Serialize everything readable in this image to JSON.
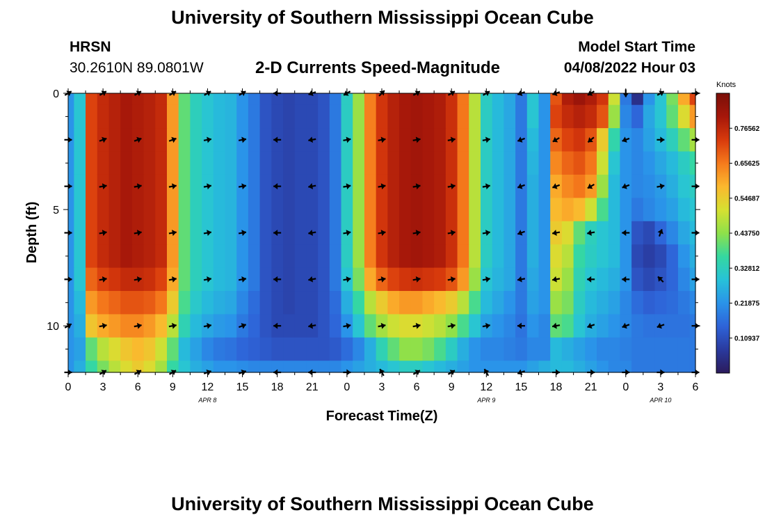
{
  "page": {
    "title": "University of Southern Mississippi Ocean Cube",
    "bottom_title": "University of Southern Mississippi Ocean Cube",
    "station": "HRSN",
    "location": "30.2610N  89.0801W",
    "center_title": "2-D Currents Speed-Magnitude",
    "model_start_label": "Model Start Time",
    "model_start_value": "04/08/2022 Hour 03"
  },
  "colors": {
    "background": "#ffffff",
    "axis": "#000000",
    "arrow": "#000000",
    "colormap": [
      "#2b1b5c",
      "#2a3a9e",
      "#2e63d8",
      "#2a93e9",
      "#27c2d8",
      "#35d8a0",
      "#8ee04a",
      "#d6e031",
      "#fbb82e",
      "#f57a1c",
      "#d83a0c",
      "#a6170a",
      "#7a0f08"
    ]
  },
  "chart_data": {
    "type": "heatmap",
    "title": "2-D Currents Speed-Magnitude",
    "xlabel": "Forecast Time(Z)",
    "ylabel": "Depth (ft)",
    "x_ticks": [
      "0",
      "3",
      "6",
      "9",
      "12",
      "15",
      "18",
      "21",
      "0",
      "3",
      "6",
      "9",
      "12",
      "15",
      "18",
      "21",
      "0",
      "3",
      "6"
    ],
    "x_hours": [
      0,
      3,
      6,
      9,
      12,
      15,
      18,
      21,
      24,
      27,
      30,
      33,
      36,
      39,
      42,
      45,
      48,
      51,
      54
    ],
    "x_range_hours": [
      0,
      54
    ],
    "date_labels": [
      {
        "text": "APR 8",
        "hour": 12
      },
      {
        "text": "APR 9",
        "hour": 36
      },
      {
        "text": "APR 10",
        "hour": 51
      }
    ],
    "y_ticks": [
      "0",
      "5",
      "10"
    ],
    "y_tick_values": [
      0,
      5,
      10
    ],
    "y_range_ft": [
      0,
      12
    ],
    "colorbar": {
      "label": "Knots",
      "tick_labels": [
        "0.76562",
        "0.65625",
        "0.54687",
        "0.43750",
        "0.32812",
        "0.21875",
        "0.10937"
      ],
      "tick_values": [
        0.765625,
        0.65625,
        0.546875,
        0.4375,
        0.328125,
        0.21875,
        0.109375
      ],
      "range": [
        0.0,
        0.875
      ]
    },
    "depths_ft": [
      0,
      1,
      2,
      3,
      4,
      5,
      6,
      7,
      8,
      9,
      10,
      11,
      12
    ],
    "time_hours": [
      0,
      1,
      2,
      3,
      4,
      5,
      6,
      7,
      8,
      9,
      10,
      11,
      12,
      13,
      14,
      15,
      16,
      17,
      18,
      19,
      20,
      21,
      22,
      23,
      24,
      25,
      26,
      27,
      28,
      29,
      30,
      31,
      32,
      33,
      34,
      35,
      36,
      37,
      38,
      39,
      40,
      41,
      42,
      43,
      44,
      45,
      46,
      47,
      48,
      49,
      50,
      51,
      52,
      53,
      54
    ],
    "speed_profile_knots": [
      [
        0.22,
        0.3,
        0.72,
        0.76,
        0.78,
        0.8,
        0.79,
        0.78,
        0.76,
        0.62,
        0.4,
        0.33,
        0.3,
        0.28,
        0.27,
        0.22,
        0.18,
        0.12,
        0.1,
        0.09,
        0.1,
        0.1,
        0.12,
        0.18,
        0.32,
        0.45,
        0.65,
        0.74,
        0.78,
        0.8,
        0.81,
        0.8,
        0.79,
        0.75,
        0.66,
        0.48,
        0.32,
        0.28,
        0.25,
        0.18,
        0.3,
        0.22,
        0.7,
        0.79,
        0.82,
        0.79,
        0.74,
        0.5,
        0.18,
        0.05,
        0.22,
        0.3,
        0.42,
        0.6,
        0.72
      ],
      [
        0.22,
        0.3,
        0.72,
        0.76,
        0.78,
        0.8,
        0.79,
        0.78,
        0.76,
        0.62,
        0.4,
        0.33,
        0.3,
        0.28,
        0.27,
        0.22,
        0.18,
        0.12,
        0.1,
        0.09,
        0.1,
        0.1,
        0.12,
        0.18,
        0.32,
        0.45,
        0.65,
        0.74,
        0.78,
        0.8,
        0.81,
        0.8,
        0.79,
        0.75,
        0.66,
        0.48,
        0.32,
        0.28,
        0.25,
        0.18,
        0.3,
        0.22,
        0.72,
        0.76,
        0.78,
        0.76,
        0.7,
        0.45,
        0.2,
        0.15,
        0.25,
        0.3,
        0.4,
        0.52,
        0.62
      ],
      [
        0.22,
        0.3,
        0.72,
        0.76,
        0.78,
        0.8,
        0.79,
        0.78,
        0.76,
        0.62,
        0.4,
        0.33,
        0.3,
        0.28,
        0.27,
        0.22,
        0.18,
        0.12,
        0.1,
        0.09,
        0.1,
        0.1,
        0.12,
        0.18,
        0.32,
        0.45,
        0.65,
        0.74,
        0.78,
        0.8,
        0.81,
        0.8,
        0.79,
        0.75,
        0.66,
        0.48,
        0.32,
        0.28,
        0.25,
        0.18,
        0.28,
        0.22,
        0.68,
        0.72,
        0.74,
        0.7,
        0.55,
        0.35,
        0.22,
        0.2,
        0.24,
        0.28,
        0.33,
        0.4,
        0.46
      ],
      [
        0.22,
        0.3,
        0.72,
        0.76,
        0.78,
        0.8,
        0.79,
        0.78,
        0.76,
        0.62,
        0.4,
        0.33,
        0.3,
        0.28,
        0.27,
        0.22,
        0.18,
        0.12,
        0.1,
        0.09,
        0.1,
        0.1,
        0.12,
        0.18,
        0.32,
        0.45,
        0.65,
        0.74,
        0.78,
        0.8,
        0.81,
        0.8,
        0.79,
        0.75,
        0.66,
        0.48,
        0.32,
        0.28,
        0.25,
        0.18,
        0.27,
        0.22,
        0.64,
        0.68,
        0.7,
        0.66,
        0.5,
        0.3,
        0.22,
        0.2,
        0.22,
        0.25,
        0.28,
        0.32,
        0.36
      ],
      [
        0.22,
        0.3,
        0.72,
        0.76,
        0.78,
        0.8,
        0.79,
        0.78,
        0.76,
        0.62,
        0.4,
        0.33,
        0.3,
        0.28,
        0.27,
        0.22,
        0.18,
        0.12,
        0.1,
        0.09,
        0.1,
        0.1,
        0.12,
        0.18,
        0.32,
        0.45,
        0.65,
        0.74,
        0.78,
        0.8,
        0.81,
        0.8,
        0.79,
        0.75,
        0.66,
        0.48,
        0.32,
        0.28,
        0.25,
        0.18,
        0.26,
        0.22,
        0.6,
        0.64,
        0.66,
        0.62,
        0.45,
        0.28,
        0.22,
        0.2,
        0.21,
        0.23,
        0.26,
        0.3,
        0.32
      ],
      [
        0.22,
        0.3,
        0.72,
        0.76,
        0.78,
        0.8,
        0.79,
        0.78,
        0.76,
        0.62,
        0.4,
        0.33,
        0.3,
        0.28,
        0.27,
        0.22,
        0.18,
        0.12,
        0.1,
        0.09,
        0.1,
        0.1,
        0.12,
        0.18,
        0.32,
        0.45,
        0.65,
        0.74,
        0.78,
        0.8,
        0.81,
        0.8,
        0.79,
        0.75,
        0.66,
        0.48,
        0.32,
        0.28,
        0.25,
        0.18,
        0.26,
        0.22,
        0.58,
        0.6,
        0.58,
        0.5,
        0.38,
        0.28,
        0.22,
        0.18,
        0.2,
        0.22,
        0.24,
        0.28,
        0.3
      ],
      [
        0.22,
        0.3,
        0.72,
        0.76,
        0.78,
        0.8,
        0.79,
        0.78,
        0.76,
        0.62,
        0.4,
        0.33,
        0.3,
        0.28,
        0.27,
        0.22,
        0.18,
        0.12,
        0.1,
        0.09,
        0.1,
        0.1,
        0.12,
        0.18,
        0.32,
        0.45,
        0.65,
        0.74,
        0.78,
        0.8,
        0.81,
        0.8,
        0.79,
        0.75,
        0.66,
        0.48,
        0.32,
        0.28,
        0.25,
        0.18,
        0.26,
        0.22,
        0.55,
        0.52,
        0.4,
        0.33,
        0.3,
        0.28,
        0.22,
        0.12,
        0.1,
        0.15,
        0.2,
        0.25,
        0.28
      ],
      [
        0.22,
        0.3,
        0.72,
        0.76,
        0.78,
        0.8,
        0.79,
        0.78,
        0.76,
        0.62,
        0.4,
        0.33,
        0.3,
        0.28,
        0.27,
        0.22,
        0.18,
        0.12,
        0.1,
        0.09,
        0.1,
        0.1,
        0.12,
        0.18,
        0.32,
        0.45,
        0.65,
        0.74,
        0.78,
        0.8,
        0.81,
        0.8,
        0.79,
        0.75,
        0.66,
        0.48,
        0.32,
        0.28,
        0.25,
        0.18,
        0.26,
        0.22,
        0.52,
        0.48,
        0.36,
        0.32,
        0.3,
        0.28,
        0.22,
        0.1,
        0.08,
        0.1,
        0.15,
        0.22,
        0.26
      ],
      [
        0.22,
        0.3,
        0.68,
        0.72,
        0.74,
        0.76,
        0.76,
        0.75,
        0.72,
        0.6,
        0.4,
        0.33,
        0.3,
        0.28,
        0.27,
        0.22,
        0.18,
        0.12,
        0.1,
        0.09,
        0.1,
        0.1,
        0.12,
        0.18,
        0.3,
        0.42,
        0.6,
        0.68,
        0.72,
        0.74,
        0.75,
        0.74,
        0.73,
        0.7,
        0.62,
        0.45,
        0.3,
        0.27,
        0.25,
        0.18,
        0.25,
        0.22,
        0.5,
        0.45,
        0.34,
        0.3,
        0.28,
        0.26,
        0.22,
        0.12,
        0.1,
        0.12,
        0.15,
        0.2,
        0.24
      ],
      [
        0.22,
        0.28,
        0.62,
        0.66,
        0.68,
        0.7,
        0.7,
        0.69,
        0.66,
        0.55,
        0.38,
        0.31,
        0.28,
        0.26,
        0.25,
        0.2,
        0.16,
        0.12,
        0.1,
        0.09,
        0.1,
        0.1,
        0.12,
        0.16,
        0.26,
        0.36,
        0.48,
        0.55,
        0.6,
        0.62,
        0.62,
        0.6,
        0.58,
        0.55,
        0.48,
        0.38,
        0.28,
        0.25,
        0.22,
        0.18,
        0.24,
        0.22,
        0.45,
        0.42,
        0.32,
        0.28,
        0.26,
        0.24,
        0.2,
        0.16,
        0.14,
        0.15,
        0.16,
        0.18,
        0.2
      ],
      [
        0.22,
        0.26,
        0.56,
        0.6,
        0.62,
        0.64,
        0.64,
        0.62,
        0.58,
        0.48,
        0.34,
        0.28,
        0.25,
        0.23,
        0.22,
        0.18,
        0.15,
        0.12,
        0.1,
        0.1,
        0.1,
        0.1,
        0.12,
        0.15,
        0.22,
        0.3,
        0.4,
        0.46,
        0.5,
        0.52,
        0.52,
        0.5,
        0.48,
        0.44,
        0.38,
        0.3,
        0.24,
        0.22,
        0.2,
        0.17,
        0.22,
        0.2,
        0.4,
        0.38,
        0.3,
        0.26,
        0.24,
        0.22,
        0.2,
        0.18,
        0.17,
        0.17,
        0.17,
        0.17,
        0.18
      ],
      [
        0.22,
        0.24,
        0.4,
        0.48,
        0.52,
        0.56,
        0.58,
        0.56,
        0.5,
        0.4,
        0.28,
        0.24,
        0.2,
        0.18,
        0.17,
        0.15,
        0.14,
        0.13,
        0.12,
        0.12,
        0.12,
        0.12,
        0.12,
        0.13,
        0.16,
        0.2,
        0.26,
        0.34,
        0.4,
        0.44,
        0.44,
        0.42,
        0.38,
        0.32,
        0.26,
        0.22,
        0.2,
        0.2,
        0.19,
        0.18,
        0.2,
        0.2,
        0.28,
        0.26,
        0.24,
        0.22,
        0.2,
        0.2,
        0.19,
        0.18,
        0.18,
        0.18,
        0.18,
        0.18,
        0.18
      ],
      [
        0.22,
        0.26,
        0.36,
        0.42,
        0.48,
        0.52,
        0.55,
        0.52,
        0.46,
        0.36,
        0.3,
        0.26,
        0.24,
        0.22,
        0.22,
        0.21,
        0.2,
        0.2,
        0.2,
        0.2,
        0.2,
        0.2,
        0.2,
        0.2,
        0.22,
        0.24,
        0.26,
        0.28,
        0.3,
        0.32,
        0.32,
        0.3,
        0.28,
        0.26,
        0.24,
        0.22,
        0.22,
        0.22,
        0.22,
        0.22,
        0.24,
        0.26,
        0.28,
        0.28,
        0.26,
        0.24,
        0.22,
        0.2,
        0.2,
        0.18,
        0.18,
        0.18,
        0.18,
        0.18,
        0.18
      ]
    ],
    "arrow_depths_ft": [
      0,
      2,
      4,
      6,
      8,
      10,
      12
    ],
    "arrow_hours": [
      0,
      3,
      6,
      9,
      12,
      15,
      18,
      21,
      24,
      27,
      30,
      33,
      36,
      39,
      42,
      45,
      48,
      51,
      54
    ],
    "arrow_angles_deg_from_east_ccw": [
      [
        30,
        30,
        30,
        30,
        30,
        30,
        180,
        200,
        210,
        45,
        30,
        30,
        30,
        200,
        200,
        210,
        270,
        30,
        0
      ],
      [
        0,
        20,
        20,
        20,
        10,
        10,
        180,
        190,
        10,
        10,
        10,
        10,
        10,
        200,
        210,
        220,
        200,
        0,
        0
      ],
      [
        0,
        10,
        10,
        10,
        10,
        10,
        180,
        190,
        10,
        10,
        10,
        10,
        10,
        200,
        200,
        210,
        200,
        10,
        0
      ],
      [
        0,
        10,
        10,
        10,
        10,
        10,
        180,
        190,
        10,
        10,
        10,
        10,
        10,
        200,
        190,
        190,
        180,
        70,
        0
      ],
      [
        0,
        10,
        10,
        10,
        10,
        10,
        180,
        190,
        10,
        10,
        10,
        10,
        10,
        190,
        190,
        180,
        180,
        135,
        0
      ],
      [
        30,
        10,
        10,
        10,
        10,
        20,
        180,
        190,
        10,
        10,
        10,
        10,
        10,
        180,
        190,
        200,
        200,
        200,
        0
      ],
      [
        0,
        30,
        30,
        30,
        20,
        20,
        180,
        180,
        0,
        120,
        30,
        30,
        120,
        200,
        0,
        0,
        0,
        0,
        0
      ]
    ]
  }
}
